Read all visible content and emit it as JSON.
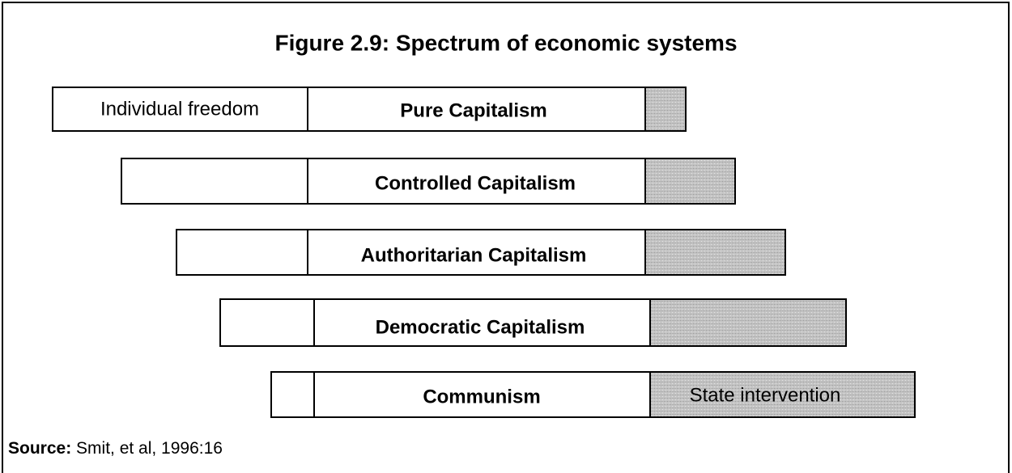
{
  "title": "Figure 2.9: Spectrum of economic systems",
  "rows": [
    {
      "left_label": "Individual freedom",
      "label": "Pure Capitalism"
    },
    {
      "label": "Controlled Capitalism"
    },
    {
      "label": "Authoritarian Capitalism"
    },
    {
      "label": "Democratic Capitalism"
    },
    {
      "label": "Communism",
      "right_label": "State intervention"
    }
  ],
  "source": {
    "label": "Source:",
    "text": "Smit, et al, 1996:16"
  }
}
